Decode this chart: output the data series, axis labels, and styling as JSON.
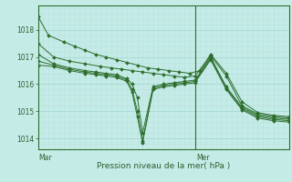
{
  "background_color": "#c5ebe7",
  "grid_color_major": "#a8d8d4",
  "grid_color_minor": "#b8e2de",
  "line_color": "#2d6e2d",
  "marker_color": "#2d6e2d",
  "spine_color": "#2d6e2d",
  "label_color": "#2d5f2d",
  "title": "Pression niveau de la mer( hPa )",
  "xlabel_mar": "Mar",
  "xlabel_mer": "Mer",
  "ylim": [
    1013.6,
    1018.9
  ],
  "yticks": [
    1014,
    1015,
    1016,
    1017,
    1018
  ],
  "xlim": [
    0,
    48
  ],
  "ver_line_x": 30,
  "mar_x": 0,
  "mer_x": 30,
  "num_minor_xticks": 48,
  "series": [
    {
      "x": [
        0,
        2,
        5,
        7,
        9,
        11,
        13,
        15,
        17,
        19,
        21,
        23,
        25,
        27,
        29,
        31,
        33,
        36,
        39,
        42,
        45,
        48
      ],
      "y": [
        1018.5,
        1017.8,
        1017.55,
        1017.4,
        1017.25,
        1017.1,
        1017.0,
        1016.9,
        1016.8,
        1016.7,
        1016.6,
        1016.55,
        1016.5,
        1016.45,
        1016.4,
        1016.5,
        1017.1,
        1016.4,
        1015.35,
        1014.95,
        1014.85,
        1014.8
      ]
    },
    {
      "x": [
        0,
        3,
        6,
        9,
        12,
        14,
        16,
        18,
        20,
        22,
        24,
        26,
        28,
        30,
        33,
        36,
        39,
        42,
        45,
        48
      ],
      "y": [
        1017.5,
        1017.0,
        1016.85,
        1016.75,
        1016.65,
        1016.6,
        1016.55,
        1016.5,
        1016.45,
        1016.4,
        1016.35,
        1016.3,
        1016.25,
        1016.3,
        1017.05,
        1016.3,
        1015.2,
        1014.9,
        1014.8,
        1014.75
      ]
    },
    {
      "x": [
        0,
        3,
        6,
        9,
        11,
        13,
        15,
        17,
        18,
        19,
        20,
        22,
        24,
        26,
        28,
        30,
        33,
        36,
        39,
        42,
        45,
        48
      ],
      "y": [
        1017.1,
        1016.75,
        1016.6,
        1016.5,
        1016.45,
        1016.4,
        1016.35,
        1016.2,
        1016.0,
        1015.5,
        1014.2,
        1015.9,
        1016.0,
        1016.05,
        1016.1,
        1016.15,
        1017.0,
        1015.9,
        1015.15,
        1014.85,
        1014.75,
        1014.7
      ]
    },
    {
      "x": [
        0,
        3,
        6,
        9,
        11,
        13,
        15,
        17,
        18,
        19,
        20,
        22,
        24,
        26,
        28,
        30,
        33,
        36,
        39,
        42,
        45,
        48
      ],
      "y": [
        1016.85,
        1016.7,
        1016.55,
        1016.45,
        1016.4,
        1016.35,
        1016.3,
        1016.15,
        1015.8,
        1015.0,
        1013.9,
        1015.85,
        1015.95,
        1016.0,
        1016.05,
        1016.1,
        1016.95,
        1015.85,
        1015.1,
        1014.8,
        1014.7,
        1014.65
      ]
    },
    {
      "x": [
        0,
        3,
        6,
        9,
        11,
        13,
        15,
        17,
        18,
        19,
        20,
        22,
        24,
        26,
        28,
        30,
        33,
        36,
        39,
        42,
        45,
        48
      ],
      "y": [
        1016.7,
        1016.65,
        1016.5,
        1016.4,
        1016.35,
        1016.3,
        1016.25,
        1016.1,
        1015.7,
        1014.8,
        1013.85,
        1015.8,
        1015.9,
        1015.95,
        1016.0,
        1016.05,
        1016.9,
        1015.8,
        1015.05,
        1014.75,
        1014.65,
        1014.6
      ]
    }
  ]
}
